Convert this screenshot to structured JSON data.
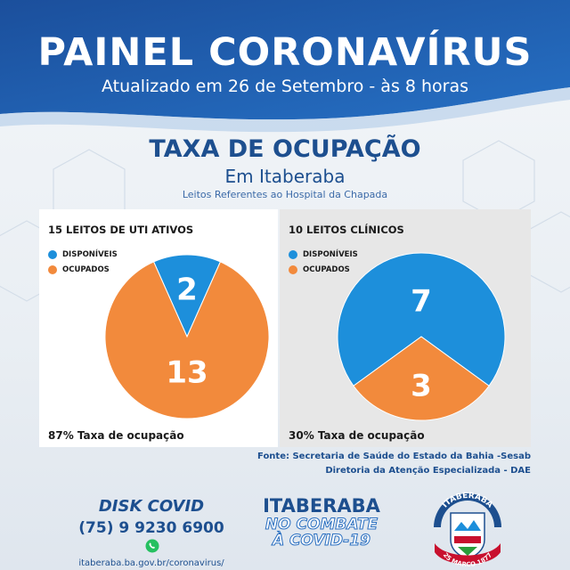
{
  "header": {
    "title": "PAINEL CORONAVÍRUS",
    "subtitle": "Atualizado em 26 de Setembro - às 8 horas"
  },
  "section": {
    "title": "TAXA DE OCUPAÇÃO",
    "place": "Em Itaberaba",
    "note": "Leitos Referentes ao Hospital da Chapada"
  },
  "colors": {
    "banner": "#1f5fb0",
    "available": "#1d8fdb",
    "occupied": "#f28a3c"
  },
  "chart_data": [
    {
      "type": "pie",
      "title": "15 LEITOS DE UTI ATIVOS",
      "categories": [
        "DISPONÍVEIS",
        "OCUPADOS"
      ],
      "values": [
        2,
        13
      ],
      "value_labels": [
        "2",
        "13"
      ],
      "legend": "top-left",
      "rate_label": "87% Taxa de ocupação"
    },
    {
      "type": "pie",
      "title": "10 LEITOS CLÍNICOS",
      "categories": [
        "DISPONÍVEIS",
        "OCUPADOS"
      ],
      "values": [
        7,
        3
      ],
      "value_labels": [
        "7",
        "3"
      ],
      "legend": "top-left",
      "rate_label": "30% Taxa de ocupação"
    }
  ],
  "source": {
    "line1": "Fonte: Secretaria de Saúde do Estado da Bahia -Sesab",
    "line2": "Diretoria da Atenção Especializada - DAE"
  },
  "footer": {
    "disk_title": "DISK COVID",
    "phone": "(75) 9 9230 6900",
    "url": "itaberaba.ba.gov.br/coronavirus/",
    "city": "ITABERABA",
    "slogan1": "NO COMBATE",
    "slogan2": "À COVID-19",
    "seal_top": "ITABERABA",
    "seal_bottom": "25 MARÇO 1877"
  }
}
